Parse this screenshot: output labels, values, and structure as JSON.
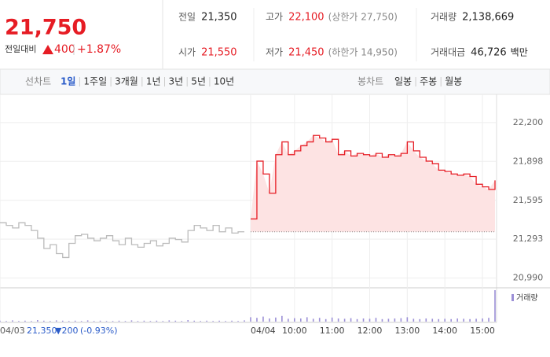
{
  "header": {
    "price": "21,750",
    "change_label": "전일대비",
    "change": "400",
    "rate": "+1.87%"
  },
  "info": [
    {
      "label": "전일",
      "value": "21,350"
    },
    {
      "label": "고가",
      "value": "22,100",
      "extra": "(상한가 27,750)"
    },
    {
      "label": "거래량",
      "value": "2,138,669"
    },
    {
      "label": "시가",
      "value": "21,550"
    },
    {
      "label": "저가",
      "value": "21,450",
      "extra": "(하한가 14,950)"
    },
    {
      "label": "거래대금",
      "value": "46,726",
      "extra": "백만"
    }
  ],
  "tabs": {
    "line_label": "선차트",
    "periods": [
      "1일",
      "1주일",
      "3개월",
      "1년",
      "3년",
      "5년",
      "10년"
    ],
    "candle_label": "봉차트",
    "candles": [
      "일봉",
      "주봉",
      "월봉"
    ]
  },
  "prev_info": {
    "date": "04/03",
    "price": "21,350",
    "change": "▼200",
    "rate": "(-0.93%)"
  },
  "chart_data": {
    "type": "line",
    "categories": [
      "04/03",
      null,
      null,
      null,
      null,
      null,
      null,
      null,
      null,
      null,
      null,
      null,
      null,
      null,
      null,
      null,
      null,
      null,
      null,
      null,
      null,
      null,
      null,
      null,
      null,
      null,
      null,
      null,
      null,
      null,
      null,
      null,
      null,
      null,
      null,
      null,
      null,
      null,
      null,
      null,
      "04/04",
      null,
      null,
      null,
      null,
      null,
      null,
      "10:00",
      null,
      null,
      null,
      null,
      null,
      "11:00",
      null,
      null,
      null,
      null,
      null,
      "12:00",
      null,
      null,
      null,
      null,
      null,
      "13:00",
      null,
      null,
      null,
      null,
      null,
      "14:00",
      null,
      null,
      null,
      null,
      null,
      "15:00",
      null,
      null
    ],
    "series": [
      {
        "color": "#bbbbbb",
        "values": [
          21420,
          21400,
          21380,
          21420,
          21400,
          21360,
          21300,
          21220,
          21250,
          21180,
          21150,
          21260,
          21320,
          21330,
          21300,
          21280,
          21300,
          21320,
          21280,
          21250,
          21300,
          21250,
          21230,
          21260,
          21280,
          21240,
          21260,
          21300,
          21290,
          21270,
          21360,
          21400,
          21380,
          21360,
          21400,
          21350,
          21380,
          21340,
          21350,
          21350,
          null,
          null,
          null,
          null,
          null,
          null,
          null,
          null,
          null,
          null,
          null,
          null,
          null,
          null,
          null,
          null,
          null,
          null,
          null,
          null,
          null,
          null,
          null,
          null,
          null,
          null,
          null,
          null,
          null,
          null,
          null,
          null,
          null,
          null,
          null,
          null,
          null,
          null,
          null,
          null
        ]
      },
      {
        "color": "#e61c24",
        "fill": "#fde3e3",
        "values": [
          null,
          null,
          null,
          null,
          null,
          null,
          null,
          null,
          null,
          null,
          null,
          null,
          null,
          null,
          null,
          null,
          null,
          null,
          null,
          null,
          null,
          null,
          null,
          null,
          null,
          null,
          null,
          null,
          null,
          null,
          null,
          null,
          null,
          null,
          null,
          null,
          null,
          null,
          null,
          null,
          21450,
          21900,
          21800,
          21650,
          21950,
          22050,
          21950,
          21980,
          22020,
          22050,
          22100,
          22080,
          22050,
          22070,
          21950,
          21980,
          21940,
          21960,
          21950,
          21940,
          21960,
          21930,
          21950,
          21940,
          21960,
          22050,
          21980,
          21930,
          21900,
          21880,
          21830,
          21820,
          21800,
          21790,
          21800,
          21780,
          21720,
          21700,
          21680,
          21750
        ]
      }
    ],
    "baseline": 21350,
    "ylim": [
      20920,
      22420
    ],
    "yticks": [
      {
        "value": 22200,
        "label": "22,200"
      },
      {
        "value": 21898,
        "label": "21,898"
      },
      {
        "value": 21595,
        "label": "21,595"
      },
      {
        "value": 21293,
        "label": "21,293"
      },
      {
        "value": 20990,
        "label": "20,990"
      }
    ],
    "volume_name": "거래량",
    "volume_color": "#9b8fd6",
    "volume": [
      3,
      2,
      4,
      2,
      3,
      2,
      5,
      3,
      2,
      4,
      3,
      2,
      3,
      2,
      4,
      2,
      3,
      2,
      2,
      3,
      2,
      4,
      2,
      3,
      2,
      3,
      2,
      4,
      3,
      2,
      5,
      3,
      2,
      3,
      2,
      3,
      2,
      3,
      2,
      4,
      14,
      12,
      16,
      10,
      13,
      18,
      9,
      11,
      10,
      14,
      9,
      12,
      8,
      13,
      10,
      9,
      11,
      8,
      10,
      9,
      12,
      8,
      9,
      10,
      11,
      14,
      9,
      8,
      10,
      9,
      8,
      9,
      8,
      10,
      9,
      8,
      9,
      10,
      12,
      100
    ]
  }
}
